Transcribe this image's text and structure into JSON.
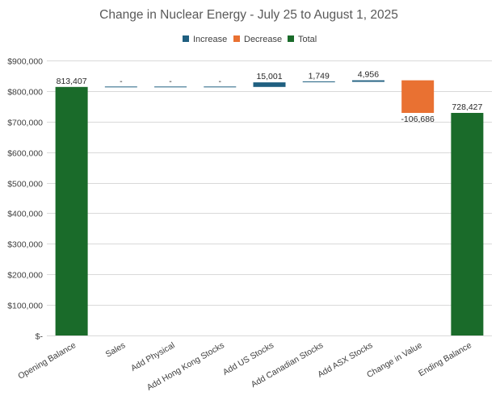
{
  "chart_data": {
    "type": "bar",
    "subtype": "waterfall",
    "title": "Change in Nuclear Energy - July 25 to August 1, 2025",
    "legend": {
      "placement": "top",
      "entries": [
        {
          "name": "Increase",
          "color": "#1f5f80"
        },
        {
          "name": "Decrease",
          "color": "#e97132"
        },
        {
          "name": "Total",
          "color": "#1a6b2a"
        }
      ]
    },
    "categories": [
      "Opening Balance",
      "Sales",
      "Add Physical",
      "Add Hong Kong Stocks",
      "Add US Stocks",
      "Add  Canadian Stocks",
      "Add ASX Stocks",
      "Change in Value",
      "Ending Balance"
    ],
    "kinds": [
      "total",
      "increase",
      "increase",
      "increase",
      "increase",
      "increase",
      "increase",
      "decrease",
      "total"
    ],
    "values": [
      813407,
      0,
      0,
      0,
      15001,
      1749,
      4956,
      -106686,
      728427
    ],
    "data_labels": [
      "813,407",
      "-",
      "-",
      "-",
      "15,001",
      "1,749",
      "4,956",
      "-106,686",
      "728,427"
    ],
    "ylim": [
      0,
      900000
    ],
    "yticks": [
      0,
      100000,
      200000,
      300000,
      400000,
      500000,
      600000,
      700000,
      800000,
      900000
    ],
    "ytick_labels": [
      "$-",
      "$100,000",
      "$200,000",
      "$300,000",
      "$400,000",
      "$500,000",
      "$600,000",
      "$700,000",
      "$800,000",
      "$900,000"
    ],
    "xlabel": "",
    "ylabel": "",
    "grid": true
  }
}
